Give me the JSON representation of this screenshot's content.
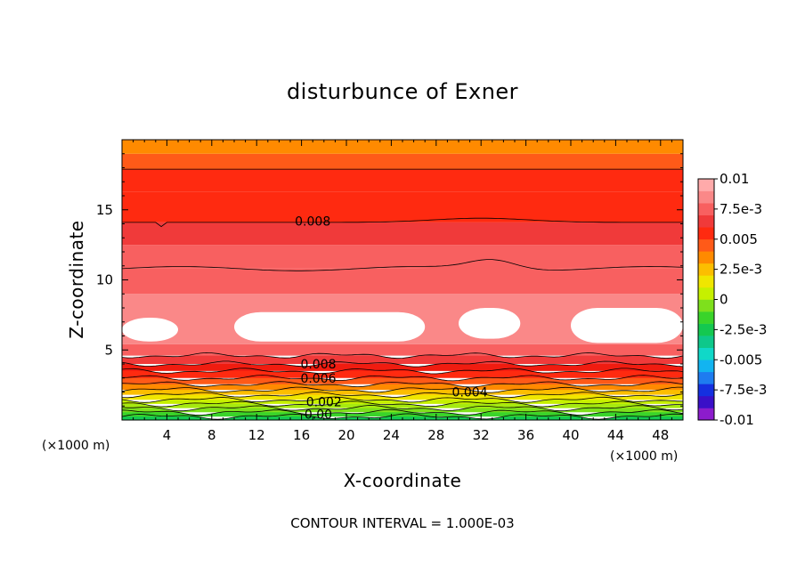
{
  "chart_data": {
    "type": "heatmap",
    "title": "disturbunce of Exner",
    "xlabel": "X-coordinate",
    "ylabel": "Z-coordinate",
    "x_unit": "(×1000 m)",
    "y_unit": "(×1000 m)",
    "xlim": [
      0,
      50
    ],
    "ylim": [
      0,
      20
    ],
    "x_ticks": [
      4,
      8,
      12,
      16,
      20,
      24,
      28,
      32,
      36,
      40,
      44,
      48
    ],
    "y_ticks": [
      5,
      10,
      15
    ],
    "contour_interval_text": "CONTOUR INTERVAL = 1.000E-03",
    "contour_labels": [
      {
        "text": "0.008",
        "x": 17,
        "z": 14.2
      },
      {
        "text": "0.008",
        "x": 17.5,
        "z": 4.0
      },
      {
        "text": "0.006",
        "x": 17.5,
        "z": 3.0
      },
      {
        "text": "0.004",
        "x": 31,
        "z": 2.0
      },
      {
        "text": "0.002",
        "x": 18,
        "z": 1.3
      },
      {
        "text": "0.00",
        "x": 17.5,
        "z": 0.4
      }
    ],
    "colorbar": {
      "min": -0.01,
      "max": 0.01,
      "tick_labels": [
        "0.01",
        "7.5e-3",
        "0.005",
        "2.5e-3",
        "0",
        "-2.5e-3",
        "-0.005",
        "-7.5e-3",
        "-0.01"
      ],
      "colors": [
        "#8c1ccc",
        "#3a10c8",
        "#1530e0",
        "#1e7cf0",
        "#12b4f0",
        "#10d8c8",
        "#0ec88a",
        "#14c850",
        "#3ad42a",
        "#7ee01c",
        "#c6f000",
        "#f0e600",
        "#fcbe00",
        "#ff8a00",
        "#ff5a18",
        "#ff2a10",
        "#f03a3a",
        "#f86060",
        "#fa8888",
        "#ffaaaa"
      ]
    },
    "bands": [
      {
        "z": [
          0,
          0.25
        ],
        "color": "#14c850"
      },
      {
        "z": [
          0.25,
          0.55
        ],
        "color": "#3ad42a"
      },
      {
        "z": [
          0.55,
          0.85
        ],
        "color": "#7ee01c"
      },
      {
        "z": [
          0.85,
          1.15
        ],
        "color": "#a6ea10"
      },
      {
        "z": [
          1.15,
          1.45
        ],
        "color": "#c6f000"
      },
      {
        "z": [
          1.45,
          1.8
        ],
        "color": "#f0e600"
      },
      {
        "z": [
          1.8,
          2.15
        ],
        "color": "#fcbe00"
      },
      {
        "z": [
          2.15,
          2.55
        ],
        "color": "#ff8a00"
      },
      {
        "z": [
          2.55,
          3.0
        ],
        "color": "#ff5a18"
      },
      {
        "z": [
          3.0,
          3.5
        ],
        "color": "#ff2a10"
      },
      {
        "z": [
          3.5,
          4.0
        ],
        "color": "#f01c10"
      },
      {
        "z": [
          4.0,
          4.6
        ],
        "color": "#f03a3a"
      },
      {
        "z": [
          4.6,
          5.4
        ],
        "color": "#f86060"
      },
      {
        "z": [
          5.4,
          9.0
        ],
        "color": "#fa8888"
      },
      {
        "z": [
          9.0,
          10.8
        ],
        "color": "#f86060"
      },
      {
        "z": [
          10.8,
          12.5
        ],
        "color": "#f86060"
      },
      {
        "z": [
          12.5,
          14.1
        ],
        "color": "#f03a3a"
      },
      {
        "z": [
          14.1,
          16.3
        ],
        "color": "#ff2a10"
      },
      {
        "z": [
          16.3,
          17.9
        ],
        "color": "#ff2a10"
      },
      {
        "z": [
          17.9,
          19.0
        ],
        "color": "#ff5a18"
      },
      {
        "z": [
          19.0,
          20.0
        ],
        "color": "#ff8a00"
      }
    ],
    "max_regions": [
      {
        "x": [
          0,
          5
        ],
        "z": [
          5.6,
          7.3
        ]
      },
      {
        "x": [
          10,
          27
        ],
        "z": [
          5.6,
          7.7
        ]
      },
      {
        "x": [
          30,
          35.5
        ],
        "z": [
          5.8,
          8.0
        ]
      },
      {
        "x": [
          40,
          50
        ],
        "z": [
          5.5,
          8.0
        ]
      }
    ]
  }
}
